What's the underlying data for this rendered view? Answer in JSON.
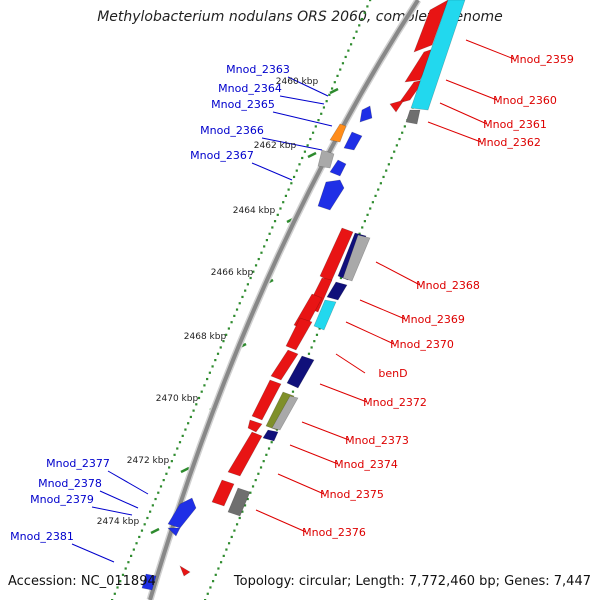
{
  "title": "Methylobacterium nodulans ORS 2060, complete genome",
  "footer": {
    "accession": "Accession: NC_011894",
    "topology": "Topology: circular; Length: 7,772,460 bp; Genes: 7,447"
  },
  "colors": {
    "backbone": "#888888",
    "tick": "#2e8b2e",
    "label_forward": "#0000cc",
    "label_reverse": "#dd0000",
    "leader_forward": "#0000cc",
    "leader_reverse": "#dd0000"
  },
  "scale_labels": [
    "2460 kbp",
    "2462 kbp",
    "2464 kbp",
    "2466 kbp",
    "2468 kbp",
    "2470 kbp",
    "2472 kbp",
    "2474 kbp"
  ],
  "forward_labels": [
    "Mnod_2363",
    "Mnod_2364",
    "Mnod_2365",
    "Mnod_2366",
    "Mnod_2367",
    "Mnod_2377",
    "Mnod_2378",
    "Mnod_2379",
    "Mnod_2381"
  ],
  "reverse_labels": [
    "Mnod_2359",
    "Mnod_2360",
    "Mnod_2361",
    "Mnod_2362",
    "Mnod_2368",
    "Mnod_2369",
    "Mnod_2370",
    "benD",
    "Mnod_2372",
    "Mnod_2373",
    "Mnod_2374",
    "Mnod_2375",
    "Mnod_2376"
  ],
  "gene_colors": {
    "forward_cds": "#1f2fe6",
    "reverse_cds": "#e81414",
    "cog_orange": "#ff8c1a",
    "cog_grey": "#a9a9a9",
    "cog_navy": "#10107a",
    "cog_cyan": "#22d8ee",
    "cog_olive": "#7f8f2a",
    "cog_darkgrey": "#6f6f6f"
  }
}
